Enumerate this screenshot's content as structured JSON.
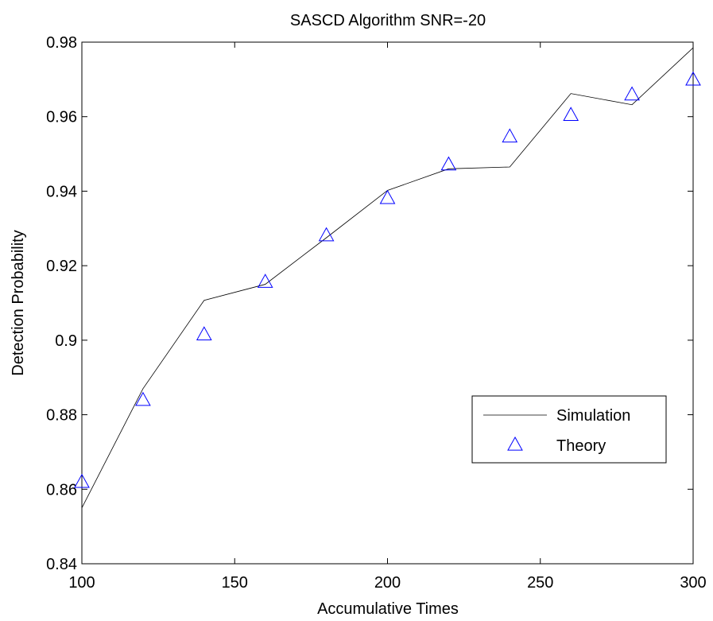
{
  "chart_data": {
    "type": "line",
    "title": "SASCD Algorithm SNR=-20",
    "xlabel": "Accumulative Times",
    "ylabel": "Detection Probability",
    "xlim": [
      100,
      300
    ],
    "ylim": [
      0.84,
      0.98
    ],
    "xticks": [
      100,
      150,
      200,
      250,
      300
    ],
    "xtick_labels": [
      "100",
      "150",
      "200",
      "250",
      "300"
    ],
    "yticks": [
      0.84,
      0.86,
      0.88,
      0.9,
      0.92,
      0.94,
      0.96,
      0.98
    ],
    "ytick_labels": [
      "0.84",
      "0.86",
      "0.88",
      "0.9",
      "0.92",
      "0.94",
      "0.96",
      "0.98"
    ],
    "grid": false,
    "legend_position": "lower-right",
    "series": [
      {
        "name": "Simulation",
        "style": "line",
        "color": "#000000",
        "x": [
          100,
          120,
          140,
          160,
          180,
          200,
          220,
          240,
          260,
          280,
          300
        ],
        "y": [
          0.855,
          0.887,
          0.9107,
          0.915,
          0.9275,
          0.9402,
          0.946,
          0.9465,
          0.9662,
          0.9632,
          0.9785
        ]
      },
      {
        "name": "Theory",
        "style": "marker",
        "marker": "triangle",
        "color": "#0000ff",
        "x": [
          100,
          120,
          140,
          160,
          180,
          200,
          220,
          240,
          260,
          280,
          300
        ],
        "y": [
          0.8618,
          0.8838,
          0.9014,
          0.9155,
          0.928,
          0.938,
          0.947,
          0.9545,
          0.9603,
          0.9658,
          0.9698
        ]
      }
    ]
  }
}
